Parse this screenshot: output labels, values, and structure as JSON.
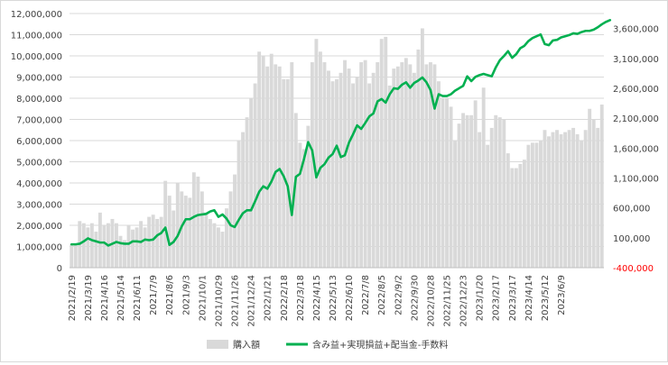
{
  "chart_data": {
    "type": "bar+line",
    "title": "",
    "x_tick_labels": [
      "2021/2/19",
      "2021/3/19",
      "2021/4/16",
      "2021/5/14",
      "2021/6/11",
      "2021/7/9",
      "2021/8/6",
      "2021/9/3",
      "2021/10/1",
      "2021/10/29",
      "2021/11/26",
      "2021/12/24",
      "2022/1/21",
      "2022/2/18",
      "2022/3/18",
      "2022/4/15",
      "2022/5/13",
      "2022/6/10",
      "2022/7/8",
      "2022/8/5",
      "2022/9/2",
      "2022/9/30",
      "2022/10/28",
      "2022/11/25",
      "2022/12/23",
      "2023/1/20",
      "2023/2/17",
      "2023/3/17",
      "2023/4/14",
      "2023/5/12",
      "2023/6/9"
    ],
    "left_axis": {
      "ticks": [
        "0",
        "1,000,000",
        "2,000,000",
        "3,000,000",
        "4,000,000",
        "5,000,000",
        "6,000,000",
        "7,000,000",
        "8,000,000",
        "9,000,000",
        "10,000,000",
        "11,000,000",
        "12,000,000"
      ],
      "ylim": [
        0,
        12000000
      ]
    },
    "right_axis": {
      "ticks": [
        "-400,000",
        "100,000",
        "600,000",
        "1,100,000",
        "1,600,000",
        "2,100,000",
        "2,600,000",
        "3,100,000",
        "3,600,000"
      ],
      "negative_color": "#ff0000",
      "ylim": [
        -400000,
        3850000
      ]
    },
    "grid": true,
    "legend_position": "bottom",
    "series": [
      {
        "name": "購入額",
        "type": "bar",
        "axis": "left",
        "color": "#d9d9d9",
        "values": [
          1100000,
          1100000,
          2200000,
          2100000,
          1900000,
          2100000,
          1700000,
          2600000,
          2000000,
          2100000,
          2300000,
          2100000,
          1500000,
          1300000,
          2000000,
          1800000,
          1900000,
          2200000,
          1900000,
          2400000,
          2500000,
          2300000,
          2400000,
          4100000,
          3400000,
          2700000,
          4000000,
          3600000,
          3400000,
          3300000,
          4500000,
          4300000,
          3600000,
          2600000,
          2300000,
          2100000,
          1900000,
          1700000,
          2800000,
          3600000,
          4400000,
          6000000,
          6400000,
          7100000,
          8000000,
          8700000,
          10200000,
          10000000,
          9500000,
          10100000,
          9600000,
          9500000,
          8900000,
          8900000,
          9700000,
          7300000,
          5900000,
          5600000,
          6700000,
          9700000,
          10800000,
          10200000,
          9700000,
          9300000,
          8800000,
          8900000,
          9200000,
          9800000,
          9400000,
          8700000,
          9000000,
          9700000,
          9800000,
          8700000,
          9200000,
          9700000,
          10800000,
          10900000,
          8600000,
          9400000,
          9500000,
          9700000,
          9900000,
          9600000,
          9200000,
          10300000,
          11300000,
          9600000,
          9700000,
          9600000,
          8800000,
          8000000,
          8000000,
          7600000,
          6000000,
          6800000,
          7300000,
          7200000,
          7200000,
          7900000,
          6400000,
          8500000,
          5800000,
          6600000,
          7200000,
          7100000,
          7000000,
          5400000,
          4700000,
          4700000,
          4900000,
          5100000,
          5800000,
          5900000,
          5900000,
          6000000,
          6500000,
          6200000,
          6400000,
          6500000,
          6300000,
          6400000,
          6500000,
          6600000,
          6300000,
          6000000,
          6500000,
          7500000,
          7000000,
          6600000,
          7700000
        ]
      },
      {
        "name": "含み益+実現損益+配当金-手数料",
        "type": "line",
        "axis": "right",
        "color": "#00b050",
        "values": [
          -10000,
          -10000,
          0,
          40000,
          90000,
          60000,
          40000,
          20000,
          20000,
          -30000,
          0,
          30000,
          10000,
          0,
          0,
          40000,
          40000,
          30000,
          70000,
          60000,
          70000,
          140000,
          180000,
          270000,
          -20000,
          30000,
          130000,
          290000,
          410000,
          410000,
          450000,
          480000,
          490000,
          500000,
          540000,
          560000,
          450000,
          490000,
          420000,
          310000,
          280000,
          400000,
          510000,
          560000,
          560000,
          710000,
          870000,
          960000,
          920000,
          1040000,
          1200000,
          1250000,
          1130000,
          960000,
          480000,
          1120000,
          1170000,
          1420000,
          1700000,
          1560000,
          1110000,
          1270000,
          1330000,
          1440000,
          1500000,
          1640000,
          1450000,
          1480000,
          1690000,
          1830000,
          1980000,
          1920000,
          2020000,
          2130000,
          2180000,
          2380000,
          2420000,
          2360000,
          2500000,
          2600000,
          2590000,
          2660000,
          2700000,
          2610000,
          2690000,
          2730000,
          2780000,
          2700000,
          2570000,
          2260000,
          2500000,
          2470000,
          2470000,
          2500000,
          2560000,
          2600000,
          2640000,
          2800000,
          2720000,
          2790000,
          2820000,
          2840000,
          2820000,
          2800000,
          2950000,
          3070000,
          3140000,
          3220000,
          3110000,
          3170000,
          3270000,
          3310000,
          3390000,
          3440000,
          3470000,
          3500000,
          3340000,
          3320000,
          3400000,
          3410000,
          3450000,
          3470000,
          3490000,
          3520000,
          3510000,
          3540000,
          3560000,
          3560000,
          3580000,
          3620000,
          3670000,
          3710000,
          3740000
        ]
      }
    ]
  }
}
